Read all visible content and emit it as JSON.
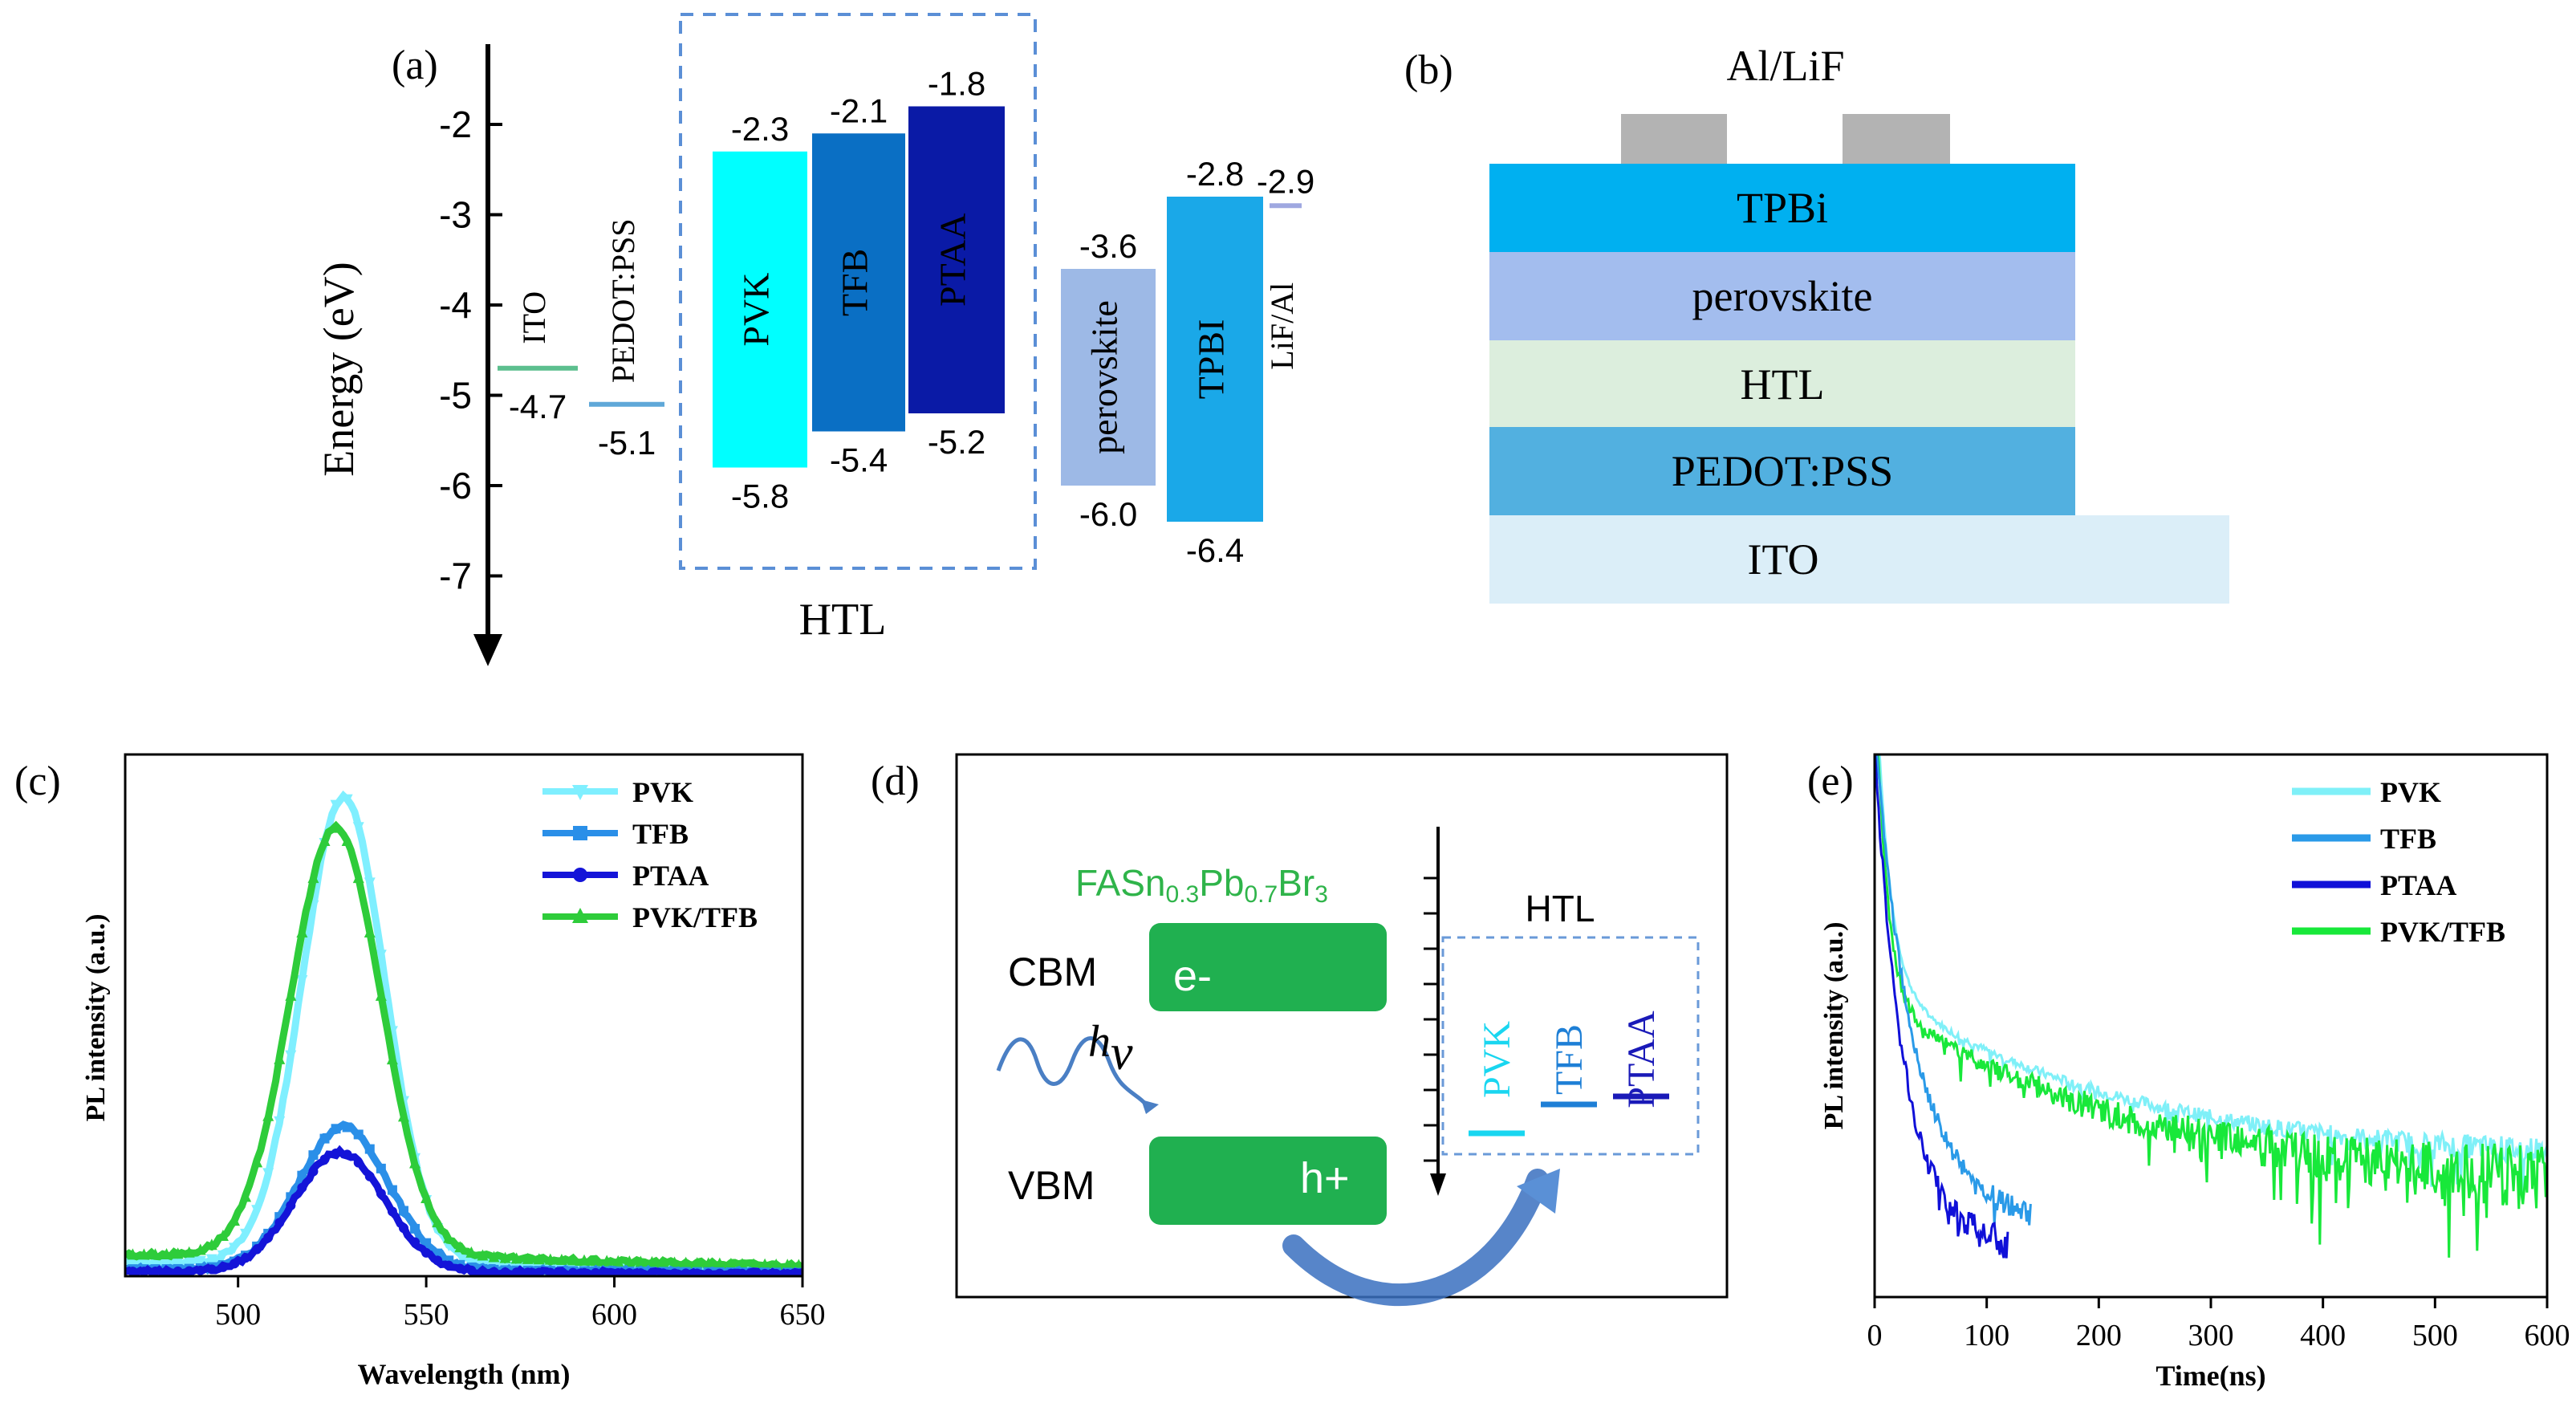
{
  "panel_labels": {
    "a": "(a)",
    "b": "(b)",
    "c": "(c)",
    "d": "(d)",
    "e": "(e)"
  },
  "chart_data": [
    {
      "type": "energy-level-diagram",
      "ylabel": "Energy (eV)",
      "ylim": [
        -7.9,
        -1.3
      ],
      "yticks": [
        -2,
        -3,
        -4,
        -5,
        -6,
        -7
      ],
      "group_label": "HTL",
      "levels": [
        {
          "name": "ITO",
          "upper": -4.7,
          "lower": null,
          "label_low": "-4.7",
          "color": "#5cbf8e"
        },
        {
          "name": "PEDOT:PSS",
          "upper": -5.1,
          "lower": null,
          "label_low": "-5.1",
          "color": "#5fa8d8"
        },
        {
          "name": "PVK",
          "upper": -2.3,
          "lower": -5.8,
          "label_top": "-2.3",
          "label_low": "-5.8",
          "color": "#00ffff"
        },
        {
          "name": "TFB",
          "upper": -2.1,
          "lower": -5.4,
          "label_top": "-2.1",
          "label_low": "-5.4",
          "color": "#0a6fc4"
        },
        {
          "name": "PTAA",
          "upper": -1.8,
          "lower": -5.2,
          "label_top": "-1.8",
          "label_low": "-5.2",
          "color": "#0a1aa6"
        },
        {
          "name": "perovskite",
          "upper": -3.6,
          "lower": -6.0,
          "label_top": "-3.6",
          "label_low": "-6.0",
          "color": "#9db9e6"
        },
        {
          "name": "TPBI",
          "upper": -2.8,
          "lower": -6.4,
          "label_top": "-2.8",
          "label_low": "-6.4",
          "color": "#1aa8e8"
        },
        {
          "name": "LiF/Al",
          "upper": -2.9,
          "lower": null,
          "label_top": "-2.9",
          "color": "#9fa8e0"
        }
      ]
    },
    {
      "type": "device-structure",
      "electrode_label": "Al/LiF",
      "layers": [
        {
          "name": "TPBi",
          "color": "#00b0f0"
        },
        {
          "name": "perovskite",
          "color": "#a3bdee"
        },
        {
          "name": "HTL",
          "color": "#dceedd"
        },
        {
          "name": "PEDOT:PSS",
          "color": "#52b0e0"
        },
        {
          "name": "ITO",
          "color": "#dbeef8"
        }
      ]
    },
    {
      "type": "line",
      "xlabel": "Wavelength (nm)",
      "ylabel": "PL intensity (a.u.)",
      "xlim": [
        470,
        650
      ],
      "ylim": [
        0,
        1.1
      ],
      "xticks": [
        500,
        550,
        600,
        650
      ],
      "series": [
        {
          "name": "PVK",
          "color": "#7fefff",
          "marker": "triangle-down",
          "peak": 528,
          "amp": 0.98,
          "sigma": 11,
          "base": 0.03
        },
        {
          "name": "TFB",
          "color": "#2a8fe8",
          "marker": "square",
          "peak": 528,
          "amp": 0.3,
          "sigma": 12,
          "base": 0.015
        },
        {
          "name": "PTAA",
          "color": "#1414d8",
          "marker": "circle",
          "peak": 527,
          "amp": 0.25,
          "sigma": 12,
          "base": 0.01
        },
        {
          "name": "PVK/TFB",
          "color": "#2ecc3a",
          "marker": "triangle-up",
          "peak": 526,
          "amp": 0.9,
          "sigma": 12,
          "base": 0.045
        }
      ]
    },
    {
      "type": "schematic",
      "material": "FASn0.3Pb0.7Br3",
      "material_main": "FASn",
      "material_sub1": "0.3",
      "material_mid": "Pb",
      "material_sub2": "0.7",
      "material_end": "Br",
      "material_sub3": "3",
      "cbm": "CBM",
      "vbm": "VBM",
      "electron": "e-",
      "hole": "h+",
      "photon": "hv",
      "photon_h": "h",
      "photon_v": "v",
      "htl_label": "HTL",
      "htl_items": [
        {
          "name": "PVK",
          "color": "#19d6f0"
        },
        {
          "name": "TFB",
          "color": "#1e7fd6"
        },
        {
          "name": "PTAA",
          "color": "#1a1ab8"
        }
      ]
    },
    {
      "type": "line",
      "xlabel": "Time(ns)",
      "ylabel": "PL intensity (a.u.)",
      "xlim": [
        0,
        600
      ],
      "xticks": [
        0,
        100,
        200,
        300,
        400,
        500,
        600
      ],
      "series": [
        {
          "name": "PVK",
          "color": "#7ff0f8",
          "end": 600
        },
        {
          "name": "TFB",
          "color": "#2a9ae8",
          "end": 140
        },
        {
          "name": "PTAA",
          "color": "#1010d8",
          "end": 120
        },
        {
          "name": "PVK/TFB",
          "color": "#18e83a",
          "end": 600
        }
      ]
    }
  ]
}
